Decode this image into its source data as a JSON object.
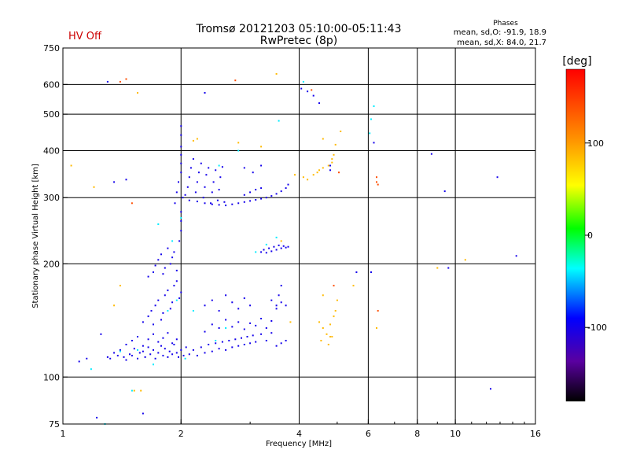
{
  "chart_data": {
    "type": "scatter",
    "title": "Tromsø 20121203 05:10:00-05:11:43",
    "subtitle": "RwPretec (8p)",
    "status": "HV Off",
    "status_color": "#cc0000",
    "stats": {
      "header": "Phases",
      "line1": "mean, sd,O: -91.9, 18.9",
      "line2": "mean, sd,X:  84.0, 21.7"
    },
    "xlabel": "Frequency [MHz]",
    "ylabel": "Stationary phase Virtual Height [km]",
    "xscale": "log",
    "yscale": "log",
    "xlim": [
      1,
      16
    ],
    "ylim": [
      75,
      750
    ],
    "xticks": [
      {
        "value": 1,
        "label": "1"
      },
      {
        "value": 2,
        "label": "2"
      },
      {
        "value": 4,
        "label": "4"
      },
      {
        "value": 6,
        "label": "6"
      },
      {
        "value": 8,
        "label": "8"
      },
      {
        "value": 10,
        "label": "10"
      },
      {
        "value": 16,
        "label": "16"
      }
    ],
    "yticks": [
      {
        "value": 75,
        "label": "75"
      },
      {
        "value": 100,
        "label": "100"
      },
      {
        "value": 200,
        "label": "200"
      },
      {
        "value": 300,
        "label": "300"
      },
      {
        "value": 400,
        "label": "400"
      },
      {
        "value": 500,
        "label": "500"
      },
      {
        "value": 600,
        "label": "600"
      },
      {
        "value": 750,
        "label": "750"
      }
    ],
    "grid": true,
    "grid_x": [
      2,
      4,
      6,
      8,
      10
    ],
    "grid_y": [
      100,
      200,
      300,
      400,
      500,
      600
    ],
    "colorbar": {
      "label": "[deg]",
      "min": -180,
      "max": 180,
      "ticks": [
        {
          "value": 100,
          "label": "100"
        },
        {
          "value": 0,
          "label": "0"
        },
        {
          "value": -100,
          "label": "-100"
        }
      ]
    },
    "series": [
      {
        "points": [
          [
            1.3,
            113
          ],
          [
            1.32,
            112
          ],
          [
            1.35,
            116
          ],
          [
            1.38,
            114
          ],
          [
            1.4,
            118
          ],
          [
            1.43,
            113
          ],
          [
            1.45,
            111
          ],
          [
            1.48,
            115
          ],
          [
            1.5,
            114
          ],
          [
            1.52,
            119
          ],
          [
            1.55,
            112
          ],
          [
            1.57,
            116
          ],
          [
            1.6,
            117
          ],
          [
            1.62,
            113
          ],
          [
            1.65,
            120
          ],
          [
            1.67,
            115
          ],
          [
            1.7,
            118
          ],
          [
            1.72,
            112
          ],
          [
            1.75,
            116
          ],
          [
            1.78,
            121
          ],
          [
            1.8,
            114
          ],
          [
            1.82,
            119
          ],
          [
            1.85,
            113
          ],
          [
            1.87,
            117
          ],
          [
            1.9,
            115
          ],
          [
            1.92,
            122
          ],
          [
            1.95,
            116
          ],
          [
            1.97,
            113
          ],
          [
            2.0,
            118
          ],
          [
            2.03,
            114
          ],
          [
            2.06,
            120
          ],
          [
            1.45,
            122
          ],
          [
            1.5,
            125
          ],
          [
            1.55,
            128
          ],
          [
            1.6,
            121
          ],
          [
            1.65,
            126
          ],
          [
            1.7,
            130
          ],
          [
            1.75,
            124
          ],
          [
            1.8,
            127
          ],
          [
            1.85,
            131
          ],
          [
            1.9,
            123
          ],
          [
            1.95,
            126
          ],
          [
            1.6,
            140
          ],
          [
            1.65,
            145
          ],
          [
            1.68,
            150
          ],
          [
            1.7,
            138
          ],
          [
            1.72,
            155
          ],
          [
            1.75,
            160
          ],
          [
            1.78,
            142
          ],
          [
            1.8,
            148
          ],
          [
            1.82,
            165
          ],
          [
            1.85,
            170
          ],
          [
            1.88,
            152
          ],
          [
            1.9,
            158
          ],
          [
            1.92,
            175
          ],
          [
            1.95,
            180
          ],
          [
            1.98,
            162
          ],
          [
            2.0,
            168
          ],
          [
            1.65,
            185
          ],
          [
            1.7,
            190
          ],
          [
            1.72,
            198
          ],
          [
            1.75,
            205
          ],
          [
            1.78,
            212
          ],
          [
            1.8,
            188
          ],
          [
            1.82,
            195
          ],
          [
            1.85,
            220
          ],
          [
            1.88,
            200
          ],
          [
            1.9,
            208
          ],
          [
            1.92,
            215
          ],
          [
            1.95,
            192
          ],
          [
            1.98,
            230
          ],
          [
            2.0,
            245
          ],
          [
            2.0,
            260
          ],
          [
            2.0,
            275
          ],
          [
            1.93,
            290
          ],
          [
            1.95,
            310
          ],
          [
            1.97,
            330
          ],
          [
            2.0,
            350
          ],
          [
            2.0,
            370
          ],
          [
            2.0,
            390
          ],
          [
            2.0,
            410
          ],
          [
            2.0,
            440
          ],
          [
            2.0,
            465
          ],
          [
            2.02,
            300
          ],
          [
            2.05,
            305
          ],
          [
            2.08,
            320
          ],
          [
            2.1,
            340
          ],
          [
            2.12,
            360
          ],
          [
            2.15,
            380
          ],
          [
            2.18,
            310
          ],
          [
            2.2,
            330
          ],
          [
            2.22,
            350
          ],
          [
            2.25,
            370
          ],
          [
            2.28,
            300
          ],
          [
            2.3,
            320
          ],
          [
            2.32,
            345
          ],
          [
            2.35,
            360
          ],
          [
            2.38,
            290
          ],
          [
            2.4,
            310
          ],
          [
            2.42,
            330
          ],
          [
            2.45,
            355
          ],
          [
            2.48,
            295
          ],
          [
            2.5,
            315
          ],
          [
            2.52,
            340
          ],
          [
            2.55,
            362
          ],
          [
            2.58,
            292
          ],
          [
            2.1,
            295
          ],
          [
            2.2,
            293
          ],
          [
            2.3,
            290
          ],
          [
            2.4,
            288
          ],
          [
            2.5,
            287
          ],
          [
            2.6,
            286
          ],
          [
            2.7,
            288
          ],
          [
            2.8,
            290
          ],
          [
            2.9,
            292
          ],
          [
            3.0,
            294
          ],
          [
            3.1,
            296
          ],
          [
            3.2,
            298
          ],
          [
            3.3,
            300
          ],
          [
            3.4,
            303
          ],
          [
            3.5,
            307
          ],
          [
            3.6,
            312
          ],
          [
            3.7,
            318
          ],
          [
            3.75,
            325
          ],
          [
            2.9,
            305
          ],
          [
            3.0,
            310
          ],
          [
            3.1,
            315
          ],
          [
            3.2,
            318
          ],
          [
            2.9,
            360
          ],
          [
            3.05,
            350
          ],
          [
            3.2,
            365
          ],
          [
            2.1,
            115
          ],
          [
            2.15,
            118
          ],
          [
            2.2,
            114
          ],
          [
            2.25,
            120
          ],
          [
            2.3,
            116
          ],
          [
            2.35,
            122
          ],
          [
            2.4,
            117
          ],
          [
            2.45,
            123
          ],
          [
            2.5,
            119
          ],
          [
            2.55,
            124
          ],
          [
            2.6,
            118
          ],
          [
            2.65,
            125
          ],
          [
            2.7,
            120
          ],
          [
            2.75,
            126
          ],
          [
            2.8,
            121
          ],
          [
            2.85,
            127
          ],
          [
            2.9,
            122
          ],
          [
            2.95,
            128
          ],
          [
            3.0,
            123
          ],
          [
            3.05,
            129
          ],
          [
            3.1,
            124
          ],
          [
            3.2,
            130
          ],
          [
            3.3,
            125
          ],
          [
            3.4,
            131
          ],
          [
            3.5,
            121
          ],
          [
            3.6,
            123
          ],
          [
            3.7,
            125
          ],
          [
            2.3,
            132
          ],
          [
            2.4,
            138
          ],
          [
            2.5,
            135
          ],
          [
            2.6,
            142
          ],
          [
            2.7,
            136
          ],
          [
            2.8,
            140
          ],
          [
            2.9,
            134
          ],
          [
            3.0,
            139
          ],
          [
            3.1,
            137
          ],
          [
            3.2,
            143
          ],
          [
            3.3,
            135
          ],
          [
            3.4,
            141
          ],
          [
            2.3,
            155
          ],
          [
            2.4,
            160
          ],
          [
            2.5,
            150
          ],
          [
            2.6,
            165
          ],
          [
            2.7,
            158
          ],
          [
            2.8,
            152
          ],
          [
            2.9,
            162
          ],
          [
            3.0,
            155
          ],
          [
            3.4,
            160
          ],
          [
            3.5,
            152
          ],
          [
            3.6,
            158
          ],
          [
            3.7,
            155
          ],
          [
            3.2,
            215
          ],
          [
            3.25,
            218
          ],
          [
            3.3,
            214
          ],
          [
            3.35,
            220
          ],
          [
            3.4,
            216
          ],
          [
            3.45,
            222
          ],
          [
            3.5,
            218
          ],
          [
            3.55,
            224
          ],
          [
            3.6,
            220
          ],
          [
            3.65,
            223
          ],
          [
            3.7,
            221
          ],
          [
            3.75,
            222
          ],
          [
            1.25,
            130
          ],
          [
            1.15,
            112
          ],
          [
            1.1,
            110
          ],
          [
            1.35,
            330
          ],
          [
            1.45,
            335
          ],
          [
            1.3,
            610
          ],
          [
            2.3,
            570
          ],
          [
            3.5,
            155
          ],
          [
            3.55,
            165
          ],
          [
            3.6,
            175
          ],
          [
            4.05,
            585
          ],
          [
            4.2,
            575
          ],
          [
            4.35,
            560
          ],
          [
            4.5,
            535
          ],
          [
            4.8,
            365
          ],
          [
            4.8,
            355
          ],
          [
            9.4,
            312
          ],
          [
            9.6,
            195
          ],
          [
            12.3,
            93
          ],
          [
            12.8,
            340
          ],
          [
            14.3,
            210
          ],
          [
            1.22,
            78
          ],
          [
            1.6,
            80
          ],
          [
            8.7,
            392
          ],
          [
            6.1,
            190
          ],
          [
            5.6,
            190
          ],
          [
            6.2,
            420
          ]
        ],
        "phase_deg": -100
      },
      {
        "points": [
          [
            1.18,
            105
          ],
          [
            1.28,
            75
          ],
          [
            1.4,
            117
          ],
          [
            1.5,
            92
          ],
          [
            1.55,
            118
          ],
          [
            1.7,
            108
          ],
          [
            1.85,
            150
          ],
          [
            1.95,
            160
          ],
          [
            2.05,
            112
          ],
          [
            2.15,
            150
          ],
          [
            1.75,
            255
          ],
          [
            1.9,
            230
          ],
          [
            2.0,
            265
          ],
          [
            2.45,
            125
          ],
          [
            2.6,
            135
          ],
          [
            3.1,
            215
          ],
          [
            3.3,
            225
          ],
          [
            3.5,
            235
          ],
          [
            3.55,
            480
          ],
          [
            2.8,
            400
          ],
          [
            2.5,
            365
          ],
          [
            6.1,
            485
          ],
          [
            6.2,
            525
          ],
          [
            6.05,
            445
          ],
          [
            4.1,
            610
          ]
        ],
        "phase_deg": -40
      },
      {
        "points": [
          [
            4.1,
            340
          ],
          [
            4.2,
            335
          ],
          [
            4.35,
            345
          ],
          [
            4.45,
            350
          ],
          [
            4.5,
            355
          ],
          [
            4.6,
            360
          ],
          [
            4.75,
            365
          ],
          [
            4.85,
            372
          ],
          [
            4.9,
            390
          ],
          [
            4.95,
            415
          ],
          [
            5.1,
            450
          ],
          [
            4.6,
            430
          ],
          [
            4.85,
            380
          ],
          [
            4.5,
            140
          ],
          [
            4.6,
            135
          ],
          [
            4.7,
            130
          ],
          [
            4.8,
            138
          ],
          [
            4.9,
            145
          ],
          [
            4.55,
            125
          ],
          [
            4.75,
            122
          ],
          [
            4.85,
            128
          ],
          [
            4.95,
            150
          ],
          [
            5.0,
            160
          ],
          [
            4.6,
            165
          ],
          [
            4.8,
            128
          ],
          [
            1.45,
            620
          ],
          [
            1.55,
            570
          ],
          [
            3.5,
            640
          ],
          [
            1.4,
            175
          ],
          [
            1.35,
            155
          ],
          [
            1.58,
            92
          ],
          [
            1.52,
            92
          ],
          [
            3.8,
            140
          ],
          [
            3.9,
            345
          ],
          [
            5.5,
            175
          ],
          [
            9.0,
            195
          ],
          [
            10.6,
            205
          ],
          [
            3.6,
            230
          ],
          [
            2.15,
            425
          ],
          [
            2.2,
            430
          ],
          [
            2.8,
            420
          ],
          [
            3.2,
            410
          ],
          [
            1.05,
            365
          ],
          [
            1.2,
            320
          ],
          [
            6.3,
            135
          ]
        ],
        "phase_deg": 85
      },
      {
        "points": [
          [
            1.5,
            290
          ],
          [
            1.45,
            620
          ],
          [
            2.75,
            615
          ],
          [
            4.3,
            580
          ],
          [
            5.05,
            350
          ],
          [
            6.3,
            340
          ],
          [
            6.35,
            325
          ],
          [
            6.3,
            330
          ],
          [
            4.9,
            175
          ],
          [
            6.35,
            150
          ],
          [
            1.4,
            610
          ]
        ],
        "phase_deg": 140
      }
    ]
  }
}
